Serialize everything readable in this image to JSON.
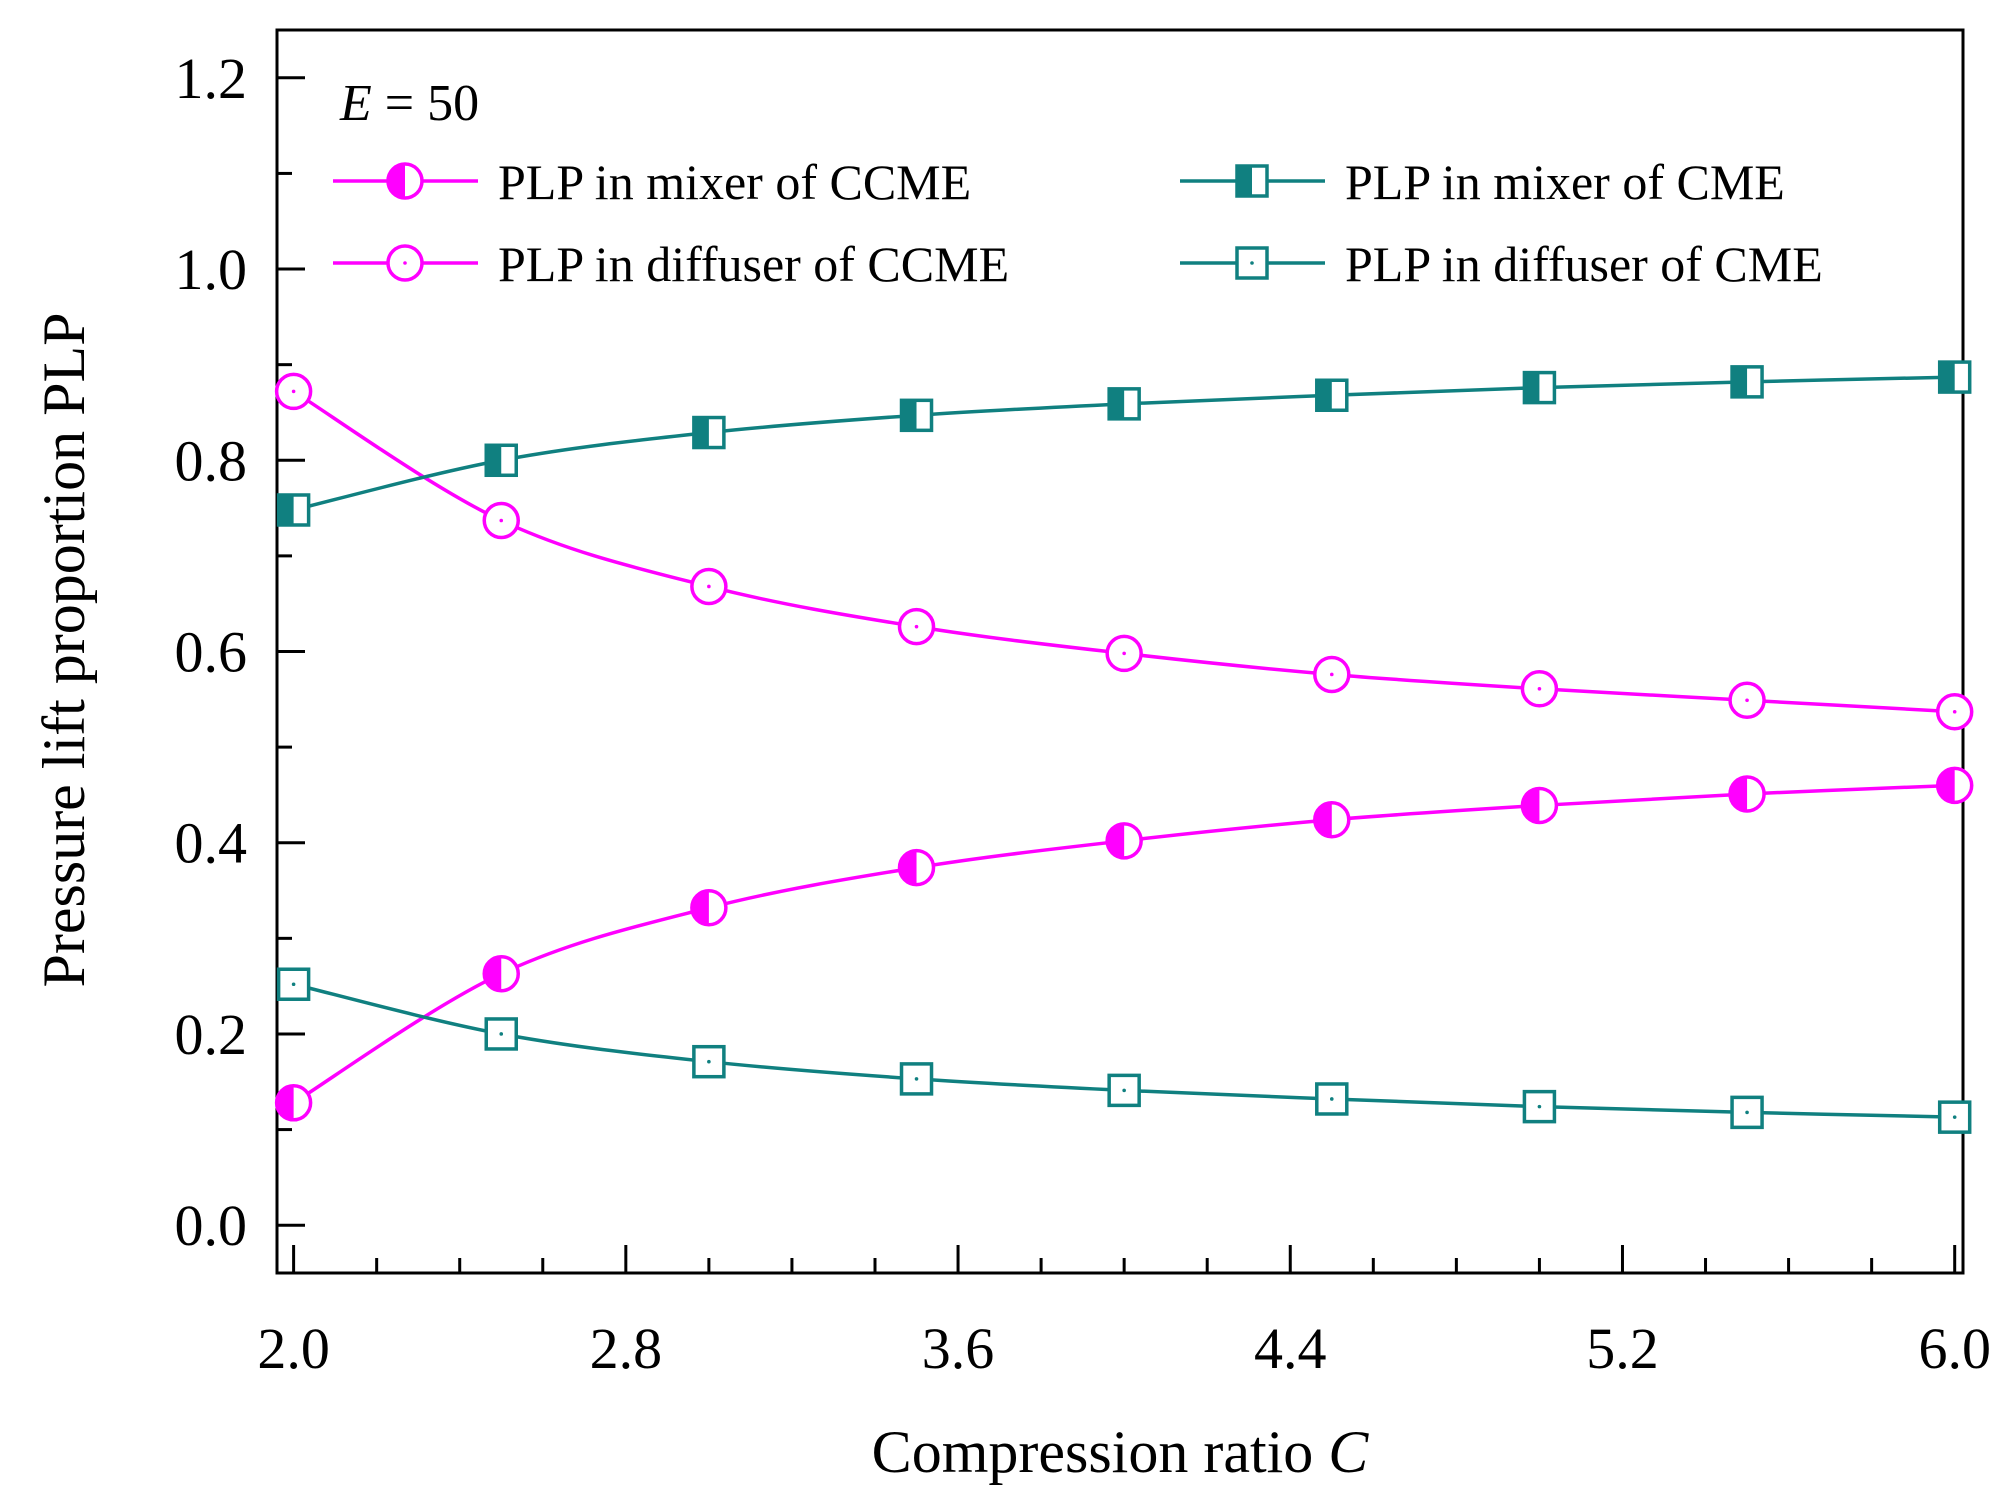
{
  "chart_data": {
    "type": "line",
    "title": "",
    "xlabel": "Compression ratio",
    "xlabel_symbol": "C",
    "ylabel": "Pressure lift proportion PLP",
    "xlim": [
      1.96,
      6.02
    ],
    "ylim": [
      -0.05,
      1.25
    ],
    "xticks": [
      2.0,
      2.8,
      3.6,
      4.4,
      5.2,
      6.0
    ],
    "xtick_labels": [
      "2.0",
      "2.8",
      "3.6",
      "4.4",
      "5.2",
      "6.0"
    ],
    "yticks": [
      0.0,
      0.2,
      0.4,
      0.6,
      0.8,
      1.0,
      1.2
    ],
    "ytick_labels": [
      "0.0",
      "0.2",
      "0.4",
      "0.6",
      "0.8",
      "1.0",
      "1.2"
    ],
    "annotation": {
      "symbol": "E",
      "text": " = 50"
    },
    "legend_position": "top",
    "x": [
      2.0,
      2.5,
      3.0,
      3.5,
      4.0,
      4.5,
      5.0,
      5.5,
      6.0
    ],
    "series": [
      {
        "name": "PLP in mixer of CCME",
        "color": "#ff00ff",
        "marker": "circle-half",
        "values": [
          0.128,
          0.263,
          0.332,
          0.374,
          0.402,
          0.424,
          0.439,
          0.451,
          0.46
        ]
      },
      {
        "name": "PLP in diffuser of CCME",
        "color": "#ff00ff",
        "marker": "circle-open",
        "values": [
          0.872,
          0.737,
          0.668,
          0.626,
          0.598,
          0.576,
          0.561,
          0.549,
          0.537
        ]
      },
      {
        "name": "PLP in mixer of CME",
        "color": "#108080",
        "marker": "square-half",
        "values": [
          0.748,
          0.8,
          0.829,
          0.847,
          0.859,
          0.868,
          0.876,
          0.882,
          0.887
        ]
      },
      {
        "name": "PLP in diffuser of CME",
        "color": "#108080",
        "marker": "square-open",
        "values": [
          0.252,
          0.2,
          0.171,
          0.153,
          0.141,
          0.132,
          0.124,
          0.118,
          0.113
        ]
      }
    ]
  }
}
